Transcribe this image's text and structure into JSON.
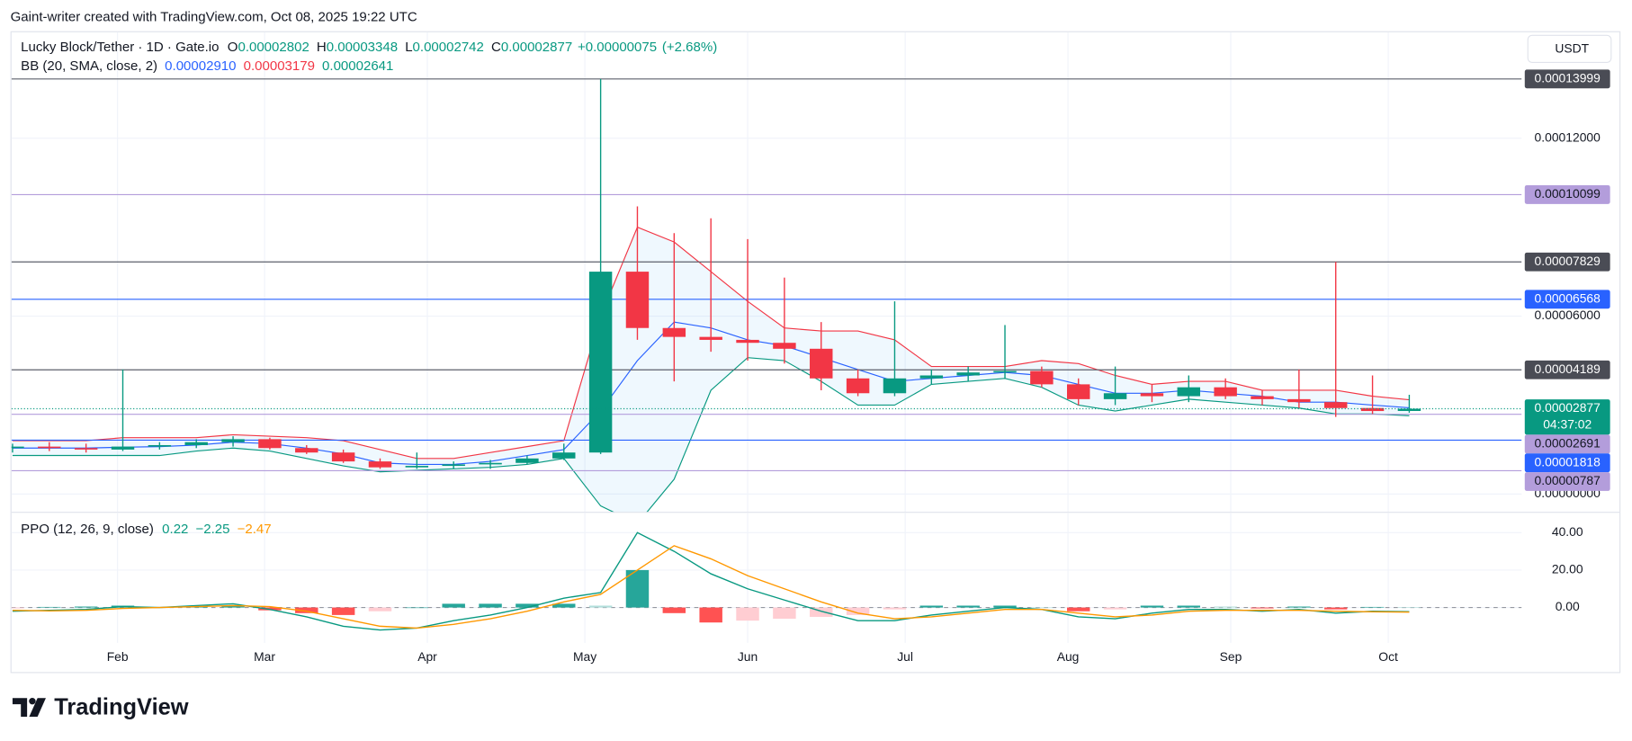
{
  "header": {
    "attribution": "Gaint-writer created with TradingView.com, Oct 08, 2025 19:22 UTC"
  },
  "chart_data": [
    {
      "type": "candlestick",
      "title": "Lucky Block/Tether · 1D · Gate.io",
      "currency": "USDT",
      "ohlc_legend": [
        {
          "name": "O",
          "value": 2.802e-05
        },
        {
          "name": "H",
          "value": 3.348e-05
        },
        {
          "name": "L",
          "value": 2.742e-05
        },
        {
          "name": "C",
          "value": 2.877e-05
        }
      ],
      "change": {
        "value": 7.5e-07,
        "label": "+0.00000075"
      },
      "change_pct": {
        "value": 2.68,
        "label": "(+2.68%)"
      },
      "x": [
        12,
        19,
        26,
        33,
        40,
        47,
        54,
        61,
        68,
        75,
        82,
        89,
        96,
        103,
        110,
        117,
        124,
        131,
        138,
        145,
        152,
        159,
        166,
        173,
        180,
        187,
        194,
        201,
        208,
        215,
        222,
        229,
        236,
        243,
        250,
        257,
        264,
        271,
        278
      ],
      "xlim": [
        12,
        299.4
      ],
      "xticks": [
        {
          "value": 32,
          "label": "Feb"
        },
        {
          "value": 60,
          "label": "Mar"
        },
        {
          "value": 91,
          "label": "Apr"
        },
        {
          "value": 121,
          "label": "May"
        },
        {
          "value": 152,
          "label": "Jun"
        },
        {
          "value": 182,
          "label": "Jul"
        },
        {
          "value": 213,
          "label": "Aug"
        },
        {
          "value": 244,
          "label": "Sep"
        },
        {
          "value": 274,
          "label": "Oct"
        }
      ],
      "open": [
        1.55e-05,
        1.6e-05,
        1.55e-05,
        1.5e-05,
        1.6e-05,
        1.65e-05,
        1.75e-05,
        1.85e-05,
        1.55e-05,
        1.4e-05,
        1.1e-05,
        9e-06,
        9.5e-06,
        1e-05,
        1.05e-05,
        1.2e-05,
        1.4e-05,
        7.5e-05,
        5.6e-05,
        5.3e-05,
        5.2e-05,
        5.1e-05,
        4.9e-05,
        3.9e-05,
        3.4e-05,
        3.9e-05,
        4e-05,
        4.1e-05,
        4.15e-05,
        3.7e-05,
        3.2e-05,
        3.4e-05,
        3.3e-05,
        3.6e-05,
        3.3e-05,
        3.2e-05,
        3.1e-05,
        2.9e-05,
        2.802e-05
      ],
      "high": [
        1.7e-05,
        1.75e-05,
        1.7e-05,
        4.2e-05,
        1.75e-05,
        1.85e-05,
        1.95e-05,
        1.9e-05,
        1.65e-05,
        1.5e-05,
        1.2e-05,
        1.4e-05,
        1.1e-05,
        1.15e-05,
        1.3e-05,
        1.7e-05,
        0.00013999,
        9.7e-05,
        8.8e-05,
        9.3e-05,
        8.6e-05,
        7.3e-05,
        5.8e-05,
        4.2e-05,
        6.5e-05,
        4.2e-05,
        4.3e-05,
        5.7e-05,
        4.3e-05,
        3.9e-05,
        4.3e-05,
        3.7e-05,
        4e-05,
        3.9e-05,
        3.5e-05,
        4.2e-05,
        7.829e-05,
        4e-05,
        3.348e-05
      ],
      "low": [
        1.4e-05,
        1.45e-05,
        1.4e-05,
        1.45e-05,
        1.5e-05,
        1.55e-05,
        1.6e-05,
        1.5e-05,
        1.35e-05,
        1.05e-05,
        8.5e-06,
        8.5e-06,
        8.5e-06,
        8.5e-06,
        1e-05,
        1.15e-05,
        1.35e-05,
        5.2e-05,
        3.8e-05,
        4.8e-05,
        4.5e-05,
        4.4e-05,
        3.5e-05,
        3.3e-05,
        3.3e-05,
        3.7e-05,
        3.8e-05,
        3.9e-05,
        3.6e-05,
        3e-05,
        3e-05,
        3.1e-05,
        3.1e-05,
        3.2e-05,
        3e-05,
        2.9e-05,
        2.6e-05,
        2.7e-05,
        2.742e-05
      ],
      "close": [
        1.6e-05,
        1.55e-05,
        1.5e-05,
        1.6e-05,
        1.65e-05,
        1.75e-05,
        1.85e-05,
        1.55e-05,
        1.4e-05,
        1.1e-05,
        9e-06,
        9.5e-06,
        1e-05,
        1.05e-05,
        1.2e-05,
        1.4e-05,
        7.5e-05,
        5.6e-05,
        5.3e-05,
        5.2e-05,
        5.1e-05,
        4.9e-05,
        3.9e-05,
        3.4e-05,
        3.9e-05,
        4e-05,
        4.1e-05,
        4.15e-05,
        3.7e-05,
        3.2e-05,
        3.4e-05,
        3.3e-05,
        3.6e-05,
        3.3e-05,
        3.2e-05,
        3.1e-05,
        2.9e-05,
        2.8e-05,
        2.877e-05
      ],
      "up_color": "#089981",
      "down_color": "#f23645",
      "bands": {
        "name": "BB (20, SMA, close, 2)",
        "fill": "#2196f3",
        "series": [
          {
            "color": "#2962ff",
            "last": {
              "value": 2.91e-05,
              "label": "0.00002910"
            },
            "values": [
              1.55e-05,
              1.55e-05,
              1.55e-05,
              1.58e-05,
              1.6e-05,
              1.65e-05,
              1.75e-05,
              1.7e-05,
              1.55e-05,
              1.35e-05,
              1.05e-05,
              1e-05,
              1e-05,
              1.1e-05,
              1.3e-05,
              1.5e-05,
              2.8e-05,
              4.5e-05,
              5.8e-05,
              5.6e-05,
              5.2e-05,
              5e-05,
              4.6e-05,
              4.2e-05,
              3.8e-05,
              3.9e-05,
              4e-05,
              4.1e-05,
              4e-05,
              3.7e-05,
              3.4e-05,
              3.4e-05,
              3.5e-05,
              3.4e-05,
              3.3e-05,
              3.1e-05,
              3.1e-05,
              3e-05,
              2.91e-05
            ]
          },
          {
            "color": "#f23645",
            "last": {
              "value": 3.179e-05,
              "label": "0.00003179"
            },
            "values": [
              1.8e-05,
              1.8e-05,
              1.8e-05,
              1.9e-05,
              1.9e-05,
              1.9e-05,
              2e-05,
              1.95e-05,
              1.9e-05,
              1.8e-05,
              1.5e-05,
              1.2e-05,
              1.2e-05,
              1.4e-05,
              1.6e-05,
              1.8e-05,
              6e-05,
              9e-05,
              8.5e-05,
              7.5e-05,
              6.5e-05,
              5.6e-05,
              5.5e-05,
              5.5e-05,
              5.2e-05,
              4.3e-05,
              4.3e-05,
              4.3e-05,
              4.5e-05,
              4.4e-05,
              4e-05,
              3.7e-05,
              3.8e-05,
              3.8e-05,
              3.5e-05,
              3.5e-05,
              3.5e-05,
              3.3e-05,
              3.179e-05
            ]
          },
          {
            "color": "#089981",
            "last": {
              "value": 2.641e-05,
              "label": "0.00002641"
            },
            "values": [
              1.3e-05,
              1.3e-05,
              1.3e-05,
              1.3e-05,
              1.3e-05,
              1.45e-05,
              1.55e-05,
              1.45e-05,
              1.2e-05,
              9.5e-06,
              7.5e-06,
              8e-06,
              8.5e-06,
              9e-06,
              1e-05,
              1.2e-05,
              -4e-06,
              -1e-05,
              5e-06,
              3.5e-05,
              4.6e-05,
              4.5e-05,
              3.8e-05,
              3e-05,
              3e-05,
              3.7e-05,
              3.8e-05,
              3.9e-05,
              3.6e-05,
              3e-05,
              2.8e-05,
              3e-05,
              3.2e-05,
              3.1e-05,
              3e-05,
              2.9e-05,
              2.7e-05,
              2.7e-05,
              2.641e-05
            ]
          }
        ]
      },
      "levels": [
        {
          "value": 0.00013999,
          "color": "#5d606b",
          "label_color": "#ffffff",
          "label_fill": "#4a4c55"
        },
        {
          "value": 0.00010099,
          "color": "#b39ddb",
          "label_color": "#131722",
          "label_fill": "#b39ddb"
        },
        {
          "value": 7.829e-05,
          "color": "#5d606b",
          "label_color": "#ffffff",
          "label_fill": "#4a4c55"
        },
        {
          "value": 6.568e-05,
          "color": "#2962ff",
          "label_color": "#ffffff",
          "label_fill": "#2962ff"
        },
        {
          "value": 4.189e-05,
          "color": "#5d606b",
          "label_color": "#ffffff",
          "label_fill": "#4a4c55"
        },
        {
          "value": 2.691e-05,
          "color": "#b39ddb",
          "label_color": "#131722",
          "label_fill": "#b39ddb"
        },
        {
          "value": 1.818e-05,
          "color": "#2962ff",
          "label_color": "#ffffff",
          "label_fill": "#2962ff"
        },
        {
          "value": 7.87e-06,
          "color": "#b39ddb",
          "label_color": "#131722",
          "label_fill": "#b39ddb"
        }
      ],
      "last_price": {
        "value": 2.877e-05,
        "countdown": "04:37:02"
      },
      "ylim": [
        -6e-06,
        0.0001561
      ],
      "yticks": [
        {
          "value": 0.00012,
          "label": "0.00012000"
        },
        {
          "value": 6e-05,
          "label": "0.00006000"
        },
        {
          "value": 0,
          "label": "0.00000000"
        }
      ],
      "grid": true
    },
    {
      "type": "ppo",
      "title": "PPO (12, 26, 9, close)",
      "histogram": {
        "last": 0.22,
        "legend_color": "#089981",
        "colors": [
          "#26a69a",
          "#b2dfdb",
          "#ffcdd2",
          "#ff5252"
        ],
        "values": [
          -0.5,
          0.3,
          0.5,
          1,
          0,
          0.5,
          1,
          -1.5,
          -3,
          -4,
          -2,
          0,
          2,
          2,
          2,
          2,
          1,
          20,
          -3,
          -8,
          -7,
          -6,
          -5,
          -4,
          -1,
          1,
          1,
          1,
          0,
          -2,
          -1,
          1,
          1,
          0.5,
          -0.5,
          0.5,
          -1,
          0.3,
          0.22
        ]
      },
      "series": [
        {
          "color": "#089981",
          "last": {
            "value": -2.25,
            "label": "−2.25"
          },
          "values": [
            -2,
            -1.5,
            -1,
            0.5,
            0,
            1,
            2,
            -1,
            -5,
            -10,
            -12,
            -11,
            -7,
            -4,
            0,
            5,
            8,
            40,
            30,
            18,
            10,
            4,
            -2,
            -7,
            -7,
            -4,
            -2,
            0,
            -1,
            -5,
            -6,
            -3,
            -1,
            -1,
            -2,
            -1,
            -3,
            -2,
            -2.25
          ]
        },
        {
          "color": "#ff9800",
          "last": {
            "value": -2.47,
            "label": "−2.47"
          },
          "values": [
            -1.5,
            -1.8,
            -1.5,
            -0.5,
            0,
            0.5,
            1,
            0.5,
            -2,
            -6,
            -10,
            -11,
            -9,
            -6,
            -2,
            3,
            7,
            20,
            33,
            26,
            17,
            10,
            3,
            -3,
            -6,
            -5,
            -3,
            -1,
            -1,
            -3,
            -5,
            -4,
            -2,
            -1.5,
            -1.5,
            -1.5,
            -2,
            -2.3,
            -2.47
          ]
        }
      ],
      "ylim": [
        -18.9,
        51.1
      ],
      "yticks": [
        {
          "value": 40,
          "label": "40.00"
        },
        {
          "value": 20,
          "label": "20.00"
        },
        {
          "value": 0,
          "label": "0.00"
        }
      ],
      "grid": true
    }
  ],
  "footer": {
    "brand": "TradingView"
  }
}
